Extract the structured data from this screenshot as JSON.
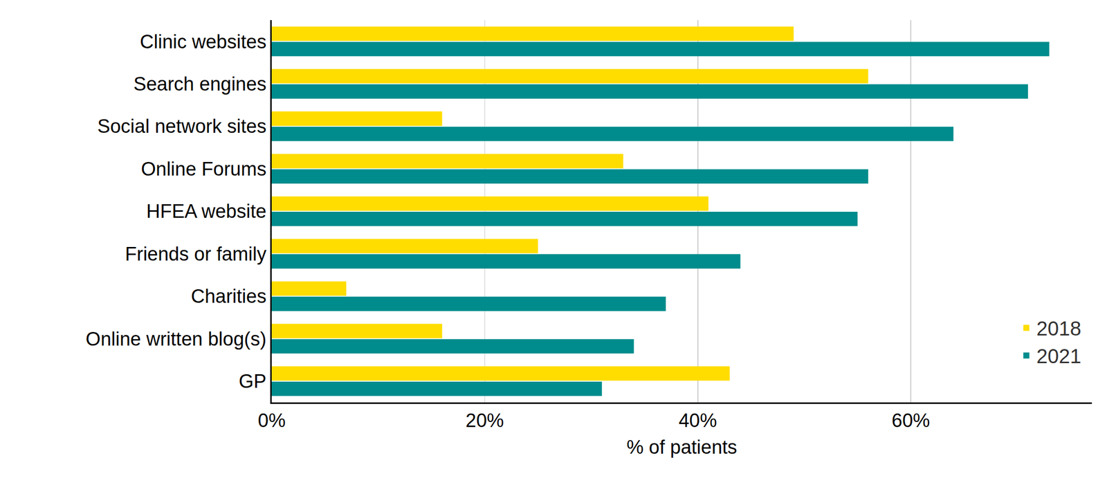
{
  "chart_data": {
    "type": "bar",
    "orientation": "horizontal",
    "categories": [
      "Clinic websites",
      "Search engines",
      "Social network sites",
      "Online Forums",
      "HFEA website",
      "Friends or family",
      "Charities",
      "Online written blog(s)",
      "GP"
    ],
    "series": [
      {
        "name": "2018",
        "color": "#FFDD00",
        "values": [
          49,
          56,
          16,
          33,
          41,
          25,
          7,
          16,
          43
        ]
      },
      {
        "name": "2021",
        "color": "#008C8C",
        "values": [
          73,
          71,
          64,
          56,
          55,
          44,
          37,
          34,
          31
        ]
      }
    ],
    "x_label": "% of patients",
    "xlim": [
      0,
      77
    ],
    "xticks": [
      {
        "value": 0,
        "label": "0%"
      },
      {
        "value": 20,
        "label": "20%"
      },
      {
        "value": 40,
        "label": "40%"
      },
      {
        "value": 60,
        "label": "60%"
      }
    ],
    "grid": true,
    "legend": "lower right"
  }
}
